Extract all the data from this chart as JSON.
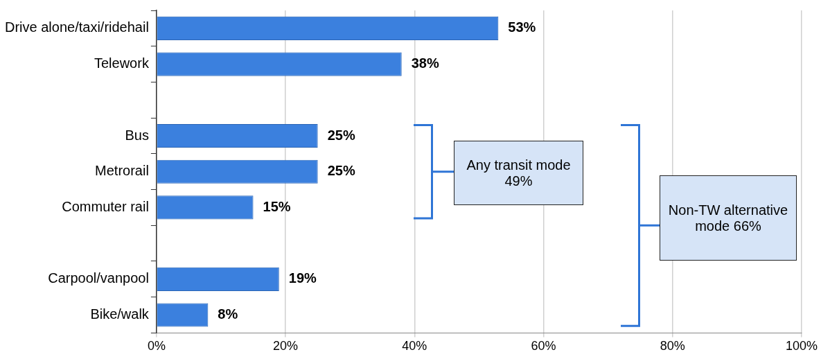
{
  "chart_data": {
    "type": "bar",
    "orientation": "horizontal",
    "categories": [
      "Drive alone/taxi/ridehail",
      "Telework",
      null,
      "Bus",
      "Metrorail",
      "Commuter rail",
      null,
      "Carpool/vanpool",
      "Bike/walk"
    ],
    "values": [
      53,
      38,
      null,
      25,
      25,
      15,
      null,
      19,
      8
    ],
    "value_labels": [
      "53%",
      "38%",
      null,
      "25%",
      "25%",
      "15%",
      null,
      "19%",
      "8%"
    ],
    "color": "#3b80de",
    "xlim": [
      0,
      100
    ],
    "xticks": [
      {
        "value": 0,
        "label": "0%"
      },
      {
        "value": 20,
        "label": "20%"
      },
      {
        "value": 40,
        "label": "40%"
      },
      {
        "value": 60,
        "label": "60%"
      },
      {
        "value": 80,
        "label": "80%"
      },
      {
        "value": 100,
        "label": "100%"
      }
    ],
    "grid": "x",
    "legend": false,
    "annotations": [
      "Any transit mode 49%",
      "Non-TW alternative mode 66%"
    ]
  }
}
